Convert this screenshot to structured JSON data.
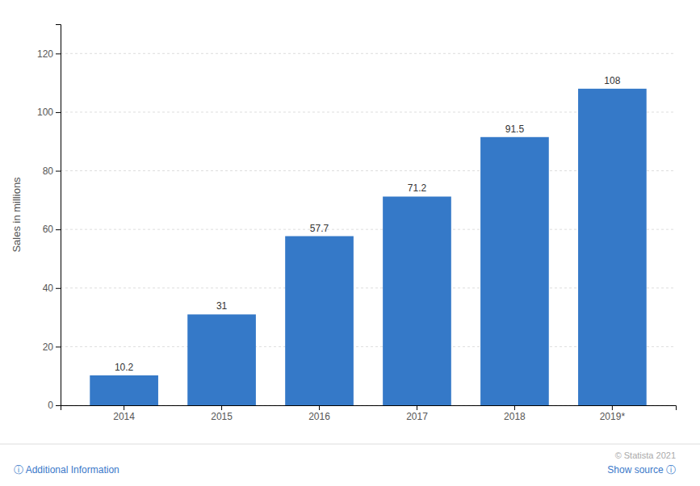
{
  "chart_data": {
    "type": "bar",
    "categories": [
      "2014",
      "2015",
      "2016",
      "2017",
      "2018",
      "2019*"
    ],
    "values": [
      10.2,
      31,
      57.7,
      71.2,
      91.5,
      108
    ],
    "color": "#3579c8",
    "ylabel": "Sales in millions",
    "ylim": [
      0,
      130
    ],
    "yticks": [
      0,
      20,
      40,
      60,
      80,
      100,
      120
    ],
    "grid": true,
    "data_labels": true,
    "annotations": [
      "ⓘ Additional Information",
      "© Statista 2021",
      "Show source ⓘ"
    ]
  }
}
